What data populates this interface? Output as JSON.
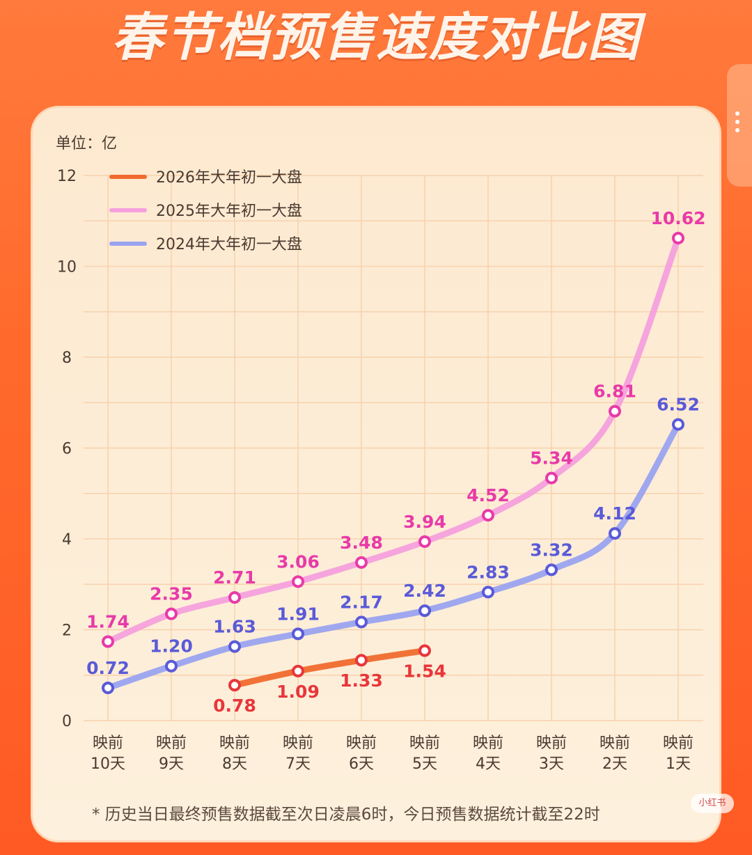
{
  "title": "春节档预售速度对比图",
  "unit_label": "单位：亿",
  "footnote": "* 历史当日最终预售数据截至次日凌晨6时，今日预售数据统计截至22时",
  "watermark": "小红书",
  "colors": {
    "2026": "#f06a2e",
    "2025": "#f5a0dd",
    "2024": "#9aa3f0",
    "label2026": "#e8363a",
    "label2025": "#e83aa8",
    "label2024": "#5a5ad8"
  },
  "chart_data": {
    "type": "line",
    "categories": [
      "映前\n10天",
      "映前\n9天",
      "映前\n8天",
      "映前\n7天",
      "映前\n6天",
      "映前\n5天",
      "映前\n4天",
      "映前\n3天",
      "映前\n2天",
      "映前\n1天"
    ],
    "ylim": [
      0,
      12
    ],
    "yticks": [
      0,
      2,
      4,
      6,
      8,
      10,
      12
    ],
    "grid": true,
    "legend": "top-left",
    "series": [
      {
        "key": "2026",
        "name": "2026年大年初一大盘",
        "values": [
          null,
          null,
          0.78,
          1.09,
          1.33,
          1.54,
          null,
          null,
          null,
          null
        ],
        "labels": [
          null,
          null,
          "0.78",
          "1.09",
          "1.33",
          "1.54",
          null,
          null,
          null,
          null
        ]
      },
      {
        "key": "2025",
        "name": "2025年大年初一大盘",
        "values": [
          1.74,
          2.35,
          2.71,
          3.06,
          3.48,
          3.94,
          4.52,
          5.34,
          6.81,
          10.62
        ],
        "labels": [
          "1.74",
          "2.35",
          "2.71",
          "3.06",
          "3.48",
          "3.94",
          "4.52",
          "5.34",
          "6.81",
          "10.62"
        ]
      },
      {
        "key": "2024",
        "name": "2024年大年初一大盘",
        "values": [
          0.72,
          1.2,
          1.63,
          1.91,
          2.17,
          2.42,
          2.83,
          3.32,
          4.12,
          6.52
        ],
        "labels": [
          "0.72",
          "1.20",
          "1.63",
          "1.91",
          "2.17",
          "2.42",
          "2.83",
          "3.32",
          "4.12",
          "6.52"
        ]
      }
    ]
  }
}
